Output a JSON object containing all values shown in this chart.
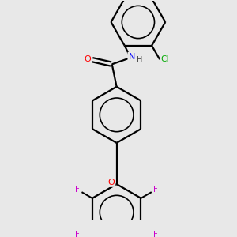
{
  "background_color": "#e8e8e8",
  "bond_color": "#000000",
  "atom_colors": {
    "O": "#ff0000",
    "N": "#0000ff",
    "Cl": "#00aa00",
    "F": "#cc00cc",
    "H": "#444444",
    "C": "#000000"
  },
  "figsize": [
    3.0,
    3.0
  ],
  "dpi": 100,
  "lw": 1.6
}
